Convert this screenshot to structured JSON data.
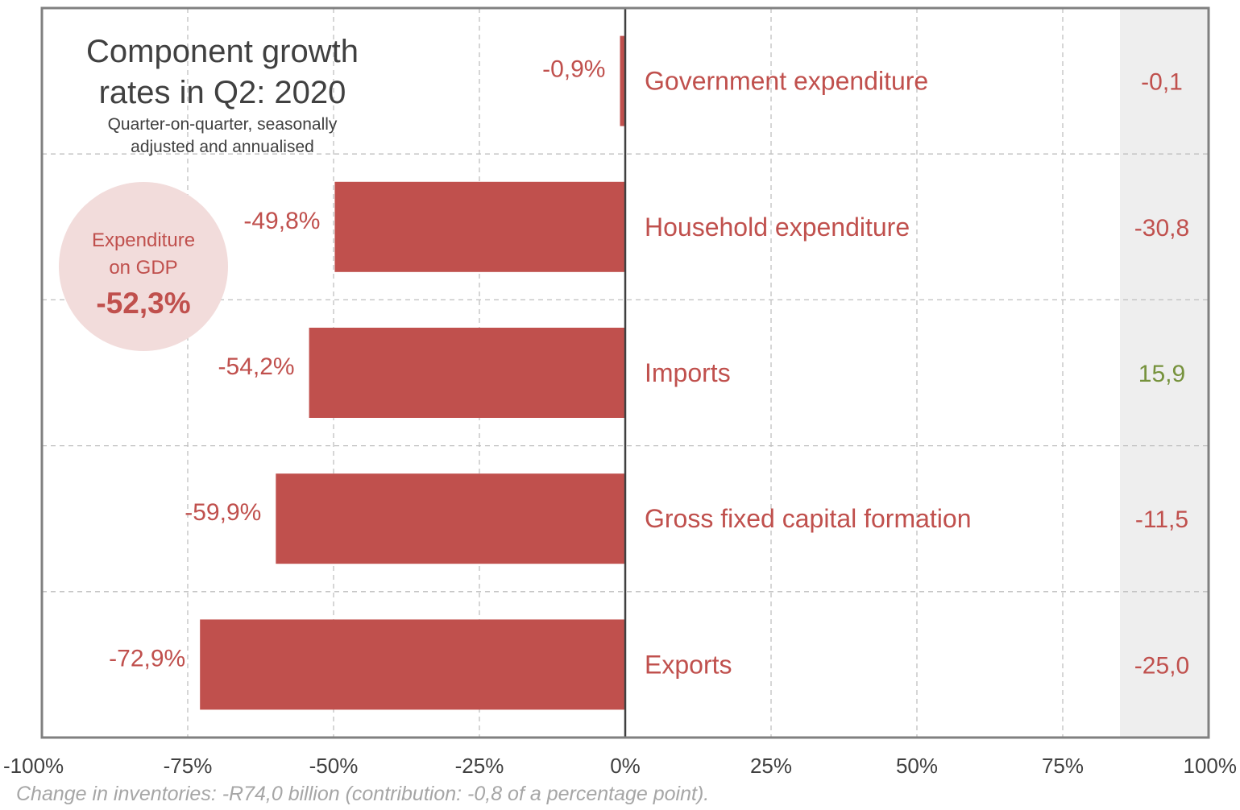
{
  "chart_data": {
    "type": "bar",
    "orientation": "horizontal",
    "title": "Component growth rates in Q2: 2020",
    "title_lines": [
      "Component growth",
      "rates in Q2: 2020"
    ],
    "subtitle_lines": [
      "Quarter-on-quarter, seasonally",
      "adjusted and annualised"
    ],
    "categories": [
      "Government expenditure",
      "Household expenditure",
      "Imports",
      "Gross fixed capital formation",
      "Exports"
    ],
    "values": [
      -0.9,
      -49.8,
      -54.2,
      -59.9,
      -72.9
    ],
    "value_labels": [
      "-0,9%",
      "-49,8%",
      "-54,2%",
      "-59,9%",
      "-72,9%"
    ],
    "contributions": [
      "-0,1",
      "-30,8",
      "15,9",
      "-11,5",
      "-25,0"
    ],
    "contribution_signs": [
      "negative",
      "negative",
      "positive",
      "negative",
      "negative"
    ],
    "xlim": [
      -100,
      100
    ],
    "xticks": [
      -100,
      -75,
      -50,
      -25,
      0,
      25,
      50,
      75,
      100
    ],
    "xtick_labels": [
      "-100%",
      "-75%",
      "-50%",
      "-25%",
      "0%",
      "25%",
      "50%",
      "75%",
      "100%"
    ],
    "grid": true,
    "callout": {
      "line1": "Expenditure",
      "line2": "on GDP",
      "value": "-52,3%"
    },
    "footnote": "Change in inventories: -R74,0 billion (contribution: -0,8 of a percentage point).",
    "colors": {
      "bar": "#c0504d",
      "label": "#c0504d",
      "positive": "#76923c",
      "callout_fill": "#f2dcdb",
      "contribution_band": "#eeeeee",
      "grid": "#bfbfbf",
      "axis": "#808080",
      "zero_line": "#404040",
      "text": "#404040",
      "footnote": "#a6a6a6"
    }
  }
}
